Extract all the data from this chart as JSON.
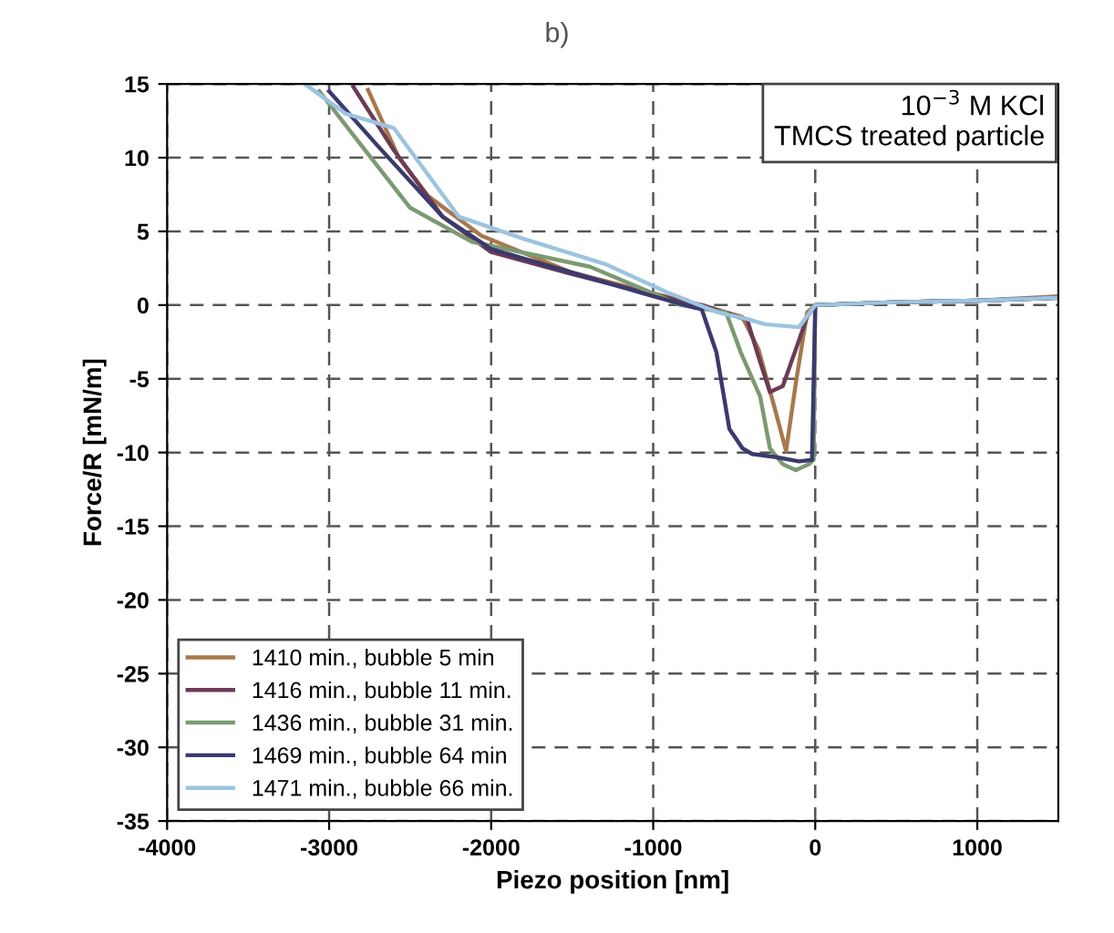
{
  "chart_data": {
    "type": "line",
    "title": "b)",
    "xlabel": "Piezo position [nm]",
    "ylabel": "Force/R [mN/m]",
    "annotations": [
      "10$^{−3}$ M KCl\nTMCS treated particle"
    ],
    "xlim": [
      -4000,
      1500
    ],
    "ylim": [
      -35,
      15
    ],
    "xticks": [
      -4000,
      -3000,
      -2000,
      -1000,
      0,
      1000
    ],
    "yticks": [
      -35,
      -30,
      -25,
      -20,
      -15,
      -10,
      -5,
      0,
      5,
      10,
      15
    ],
    "grid": true,
    "legend": "bottom left",
    "line_style": "solid",
    "marker": "none",
    "series": [
      {
        "name": "1410 min., bubble 5 min",
        "color": "#a8784c",
        "x": [
          -2760,
          -2570,
          -2390,
          -2060,
          -1500,
          -1000,
          -700,
          -450,
          -350,
          -250,
          -180,
          -120,
          -50,
          0,
          500,
          1000,
          1500
        ],
        "values": [
          14.6,
          10,
          7.4,
          4.7,
          2.2,
          0.8,
          0,
          -0.8,
          -3,
          -7,
          -9.9,
          -5.3,
          -0.5,
          0,
          0.2,
          0.3,
          0.6
        ]
      },
      {
        "name": "1416 min., bubble 11 min.",
        "color": "#6b3b56",
        "x": [
          -2850,
          -2600,
          -2300,
          -2000,
          -1500,
          -1000,
          -700,
          -420,
          -350,
          -280,
          -200,
          -120,
          -50,
          0,
          500,
          1000,
          1500
        ],
        "values": [
          14.8,
          10.5,
          6,
          3.6,
          2.1,
          0.7,
          0,
          -1,
          -3.5,
          -5.9,
          -5.5,
          -3,
          -0.8,
          0,
          0.2,
          0.3,
          0.5
        ]
      },
      {
        "name": "1436 min., bubble 31 min.",
        "color": "#7c9a72",
        "x": [
          -3060,
          -2870,
          -2500,
          -2120,
          -1390,
          -830,
          -550,
          -460,
          -340,
          -280,
          -200,
          -120,
          -40,
          -10,
          0,
          500,
          1000,
          1500
        ],
        "values": [
          14.5,
          11.8,
          6.6,
          4.3,
          2.6,
          0,
          -0.5,
          -3.2,
          -6.2,
          -9.7,
          -10.8,
          -11.2,
          -10.8,
          -10.5,
          0,
          0.2,
          0.3,
          0.5
        ]
      },
      {
        "name": "1469 min., bubble 64 min",
        "color": "#3b3a6e",
        "x": [
          -3000,
          -2700,
          -2300,
          -2000,
          -1500,
          -1000,
          -700,
          -610,
          -530,
          -450,
          -390,
          -250,
          -100,
          -20,
          0,
          500,
          1000,
          1500
        ],
        "values": [
          14.5,
          10.8,
          6,
          3.8,
          2.2,
          0.6,
          -0.3,
          -3.2,
          -8.4,
          -9.7,
          -10.1,
          -10.3,
          -10.6,
          -10.5,
          0,
          0.2,
          0.3,
          0.5
        ]
      },
      {
        "name": "1471 min., bubble 66 min.",
        "color": "#9cc4e0",
        "x": [
          -3150,
          -2900,
          -2600,
          -2400,
          -2200,
          -1800,
          -1300,
          -900,
          -600,
          -400,
          -310,
          -100,
          0,
          500,
          1000,
          1500
        ],
        "values": [
          15,
          13,
          12,
          9,
          6,
          4.5,
          2.8,
          0.8,
          -0.5,
          -1,
          -1.3,
          -1.5,
          0,
          0.2,
          0.3,
          0.5
        ]
      }
    ]
  }
}
